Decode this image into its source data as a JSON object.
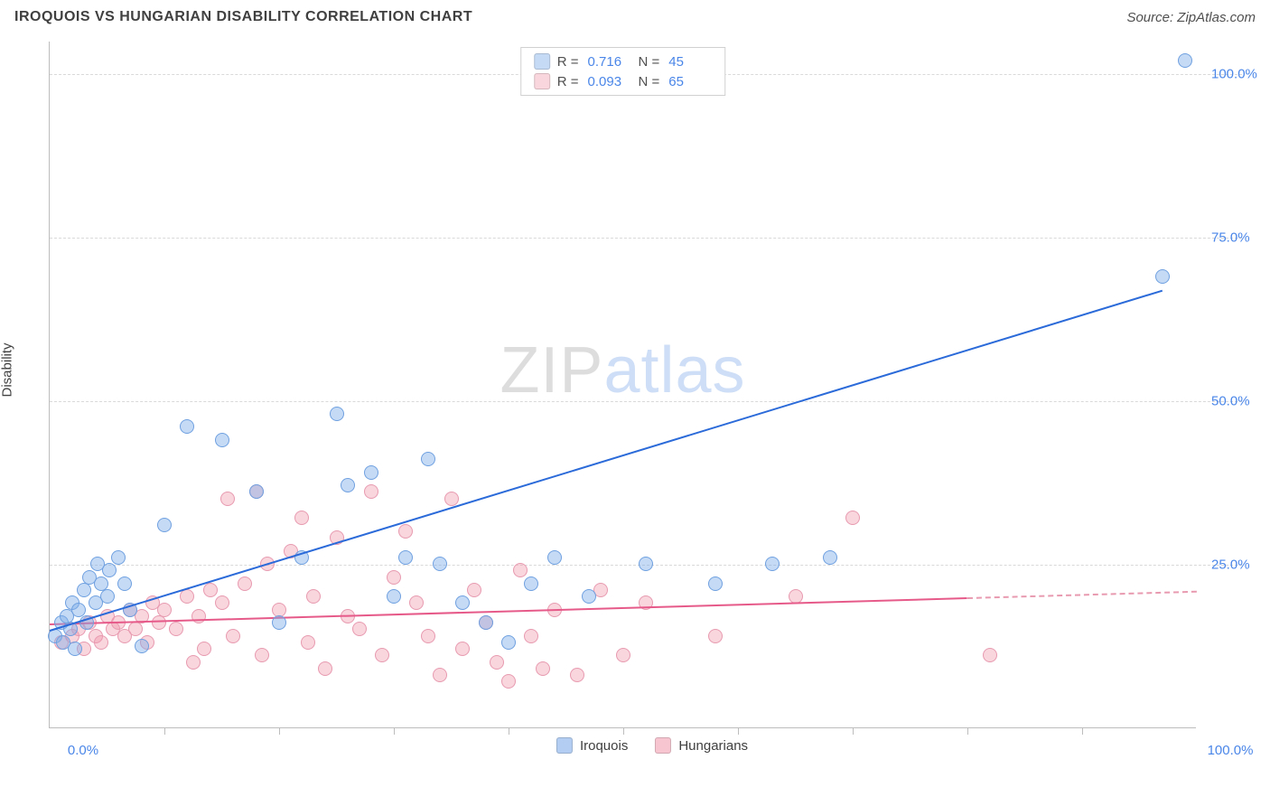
{
  "title": "IROQUOIS VS HUNGARIAN DISABILITY CORRELATION CHART",
  "source": "Source: ZipAtlas.com",
  "watermark": {
    "part1": "ZIP",
    "part2": "atlas"
  },
  "chart": {
    "type": "scatter",
    "ylabel": "Disability",
    "xlim": [
      0,
      100
    ],
    "ylim": [
      0,
      105
    ],
    "xtick_values": [
      10,
      20,
      30,
      40,
      50,
      60,
      70,
      80,
      90
    ],
    "xaxis_labels": [
      {
        "value": 0,
        "text": "0.0%"
      },
      {
        "value": 100,
        "text": "100.0%"
      }
    ],
    "yaxis_labels": [
      {
        "value": 25,
        "text": "25.0%"
      },
      {
        "value": 50,
        "text": "50.0%"
      },
      {
        "value": 75,
        "text": "75.0%"
      },
      {
        "value": 100,
        "text": "100.0%"
      }
    ],
    "grid_y": [
      25,
      50,
      75,
      100
    ],
    "background_color": "#ffffff",
    "grid_color": "#d9d9d9",
    "axis_color": "#bdbdbd",
    "label_color": "#4a86e8",
    "marker_radius": 8,
    "series": [
      {
        "name": "Iroquois",
        "color_fill": "rgba(127,172,232,0.45)",
        "color_stroke": "#6fa0e0",
        "line_color": "#2b6ad9",
        "R": "0.716",
        "N": "45",
        "trend": {
          "x1": 0,
          "y1": 15,
          "x2": 97,
          "y2": 67
        },
        "points": [
          [
            0.5,
            14
          ],
          [
            1,
            16
          ],
          [
            1.2,
            13
          ],
          [
            1.5,
            17
          ],
          [
            1.8,
            15
          ],
          [
            2,
            19
          ],
          [
            2.2,
            12
          ],
          [
            2.5,
            18
          ],
          [
            3,
            21
          ],
          [
            3.2,
            16
          ],
          [
            3.5,
            23
          ],
          [
            4,
            19
          ],
          [
            4.2,
            25
          ],
          [
            4.5,
            22
          ],
          [
            5,
            20
          ],
          [
            5.2,
            24
          ],
          [
            6,
            26
          ],
          [
            6.5,
            22
          ],
          [
            7,
            18
          ],
          [
            8,
            12.5
          ],
          [
            10,
            31
          ],
          [
            12,
            46
          ],
          [
            15,
            44
          ],
          [
            18,
            36
          ],
          [
            20,
            16
          ],
          [
            22,
            26
          ],
          [
            25,
            48
          ],
          [
            26,
            37
          ],
          [
            28,
            39
          ],
          [
            30,
            20
          ],
          [
            31,
            26
          ],
          [
            33,
            41
          ],
          [
            34,
            25
          ],
          [
            36,
            19
          ],
          [
            38,
            16
          ],
          [
            40,
            13
          ],
          [
            42,
            22
          ],
          [
            44,
            26
          ],
          [
            47,
            20
          ],
          [
            52,
            25
          ],
          [
            58,
            22
          ],
          [
            63,
            25
          ],
          [
            68,
            26
          ],
          [
            97,
            69
          ],
          [
            99,
            102
          ]
        ]
      },
      {
        "name": "Hungarians",
        "color_fill": "rgba(240,150,170,0.40)",
        "color_stroke": "#e89ab0",
        "line_color": "#e65a8a",
        "R": "0.093",
        "N": "65",
        "trend": {
          "x1": 0,
          "y1": 16,
          "x2": 80,
          "y2": 20
        },
        "trend_dash_extend": {
          "x1": 80,
          "y1": 20,
          "x2": 100,
          "y2": 21
        },
        "points": [
          [
            1,
            13
          ],
          [
            2,
            14
          ],
          [
            2.5,
            15
          ],
          [
            3,
            12
          ],
          [
            3.5,
            16
          ],
          [
            4,
            14
          ],
          [
            4.5,
            13
          ],
          [
            5,
            17
          ],
          [
            5.5,
            15
          ],
          [
            6,
            16
          ],
          [
            6.5,
            14
          ],
          [
            7,
            18
          ],
          [
            7.5,
            15
          ],
          [
            8,
            17
          ],
          [
            8.5,
            13
          ],
          [
            9,
            19
          ],
          [
            9.5,
            16
          ],
          [
            10,
            18
          ],
          [
            11,
            15
          ],
          [
            12,
            20
          ],
          [
            12.5,
            10
          ],
          [
            13,
            17
          ],
          [
            13.5,
            12
          ],
          [
            14,
            21
          ],
          [
            15,
            19
          ],
          [
            15.5,
            35
          ],
          [
            16,
            14
          ],
          [
            17,
            22
          ],
          [
            18,
            36
          ],
          [
            18.5,
            11
          ],
          [
            19,
            25
          ],
          [
            20,
            18
          ],
          [
            21,
            27
          ],
          [
            22,
            32
          ],
          [
            22.5,
            13
          ],
          [
            23,
            20
          ],
          [
            24,
            9
          ],
          [
            25,
            29
          ],
          [
            26,
            17
          ],
          [
            27,
            15
          ],
          [
            28,
            36
          ],
          [
            29,
            11
          ],
          [
            30,
            23
          ],
          [
            31,
            30
          ],
          [
            32,
            19
          ],
          [
            33,
            14
          ],
          [
            34,
            8
          ],
          [
            35,
            35
          ],
          [
            36,
            12
          ],
          [
            37,
            21
          ],
          [
            38,
            16
          ],
          [
            39,
            10
          ],
          [
            40,
            7
          ],
          [
            41,
            24
          ],
          [
            42,
            14
          ],
          [
            43,
            9
          ],
          [
            44,
            18
          ],
          [
            46,
            8
          ],
          [
            48,
            21
          ],
          [
            50,
            11
          ],
          [
            52,
            19
          ],
          [
            58,
            14
          ],
          [
            65,
            20
          ],
          [
            70,
            32
          ],
          [
            82,
            11
          ]
        ]
      }
    ],
    "legend_bottom": [
      {
        "label": "Iroquois",
        "swatch": "rgba(127,172,232,0.6)"
      },
      {
        "label": "Hungarians",
        "swatch": "rgba(240,150,170,0.55)"
      }
    ]
  }
}
